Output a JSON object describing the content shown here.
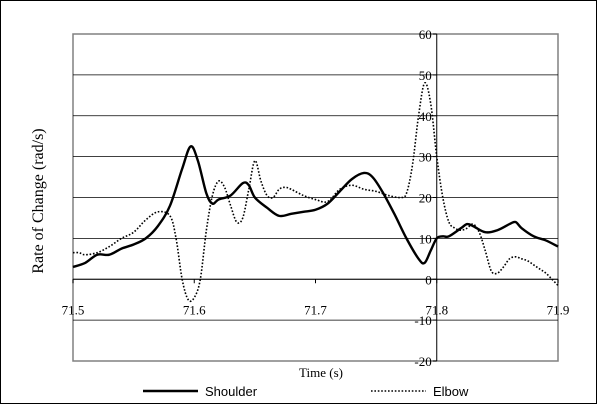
{
  "chart_data": {
    "type": "line",
    "xlabel": "Time (s)",
    "ylabel": "Rate of Change (rad/s)",
    "xlim": [
      71.5,
      71.9
    ],
    "ylim": [
      -20,
      60
    ],
    "x_ticks": [
      {
        "v": 71.5,
        "label": "71.5"
      },
      {
        "v": 71.6,
        "label": "71.6"
      },
      {
        "v": 71.7,
        "label": "71.7"
      },
      {
        "v": 71.8,
        "label": "71.8"
      },
      {
        "v": 71.9,
        "label": "71.9"
      }
    ],
    "y_ticks": [
      {
        "v": -20,
        "label": "-20"
      },
      {
        "v": -10,
        "label": "-10"
      },
      {
        "v": 0,
        "label": "0"
      },
      {
        "v": 10,
        "label": "10"
      },
      {
        "v": 20,
        "label": "20"
      },
      {
        "v": 30,
        "label": "30"
      },
      {
        "v": 40,
        "label": "40"
      },
      {
        "v": 50,
        "label": "50"
      },
      {
        "v": 60,
        "label": "60"
      }
    ],
    "grid": true,
    "legend_position": "bottom",
    "series": [
      {
        "name": "Shoulder",
        "style": "solid",
        "color": "#000000",
        "points": [
          [
            71.5,
            3.0
          ],
          [
            71.51,
            4.0
          ],
          [
            71.52,
            6.0
          ],
          [
            71.53,
            6.0
          ],
          [
            71.54,
            7.5
          ],
          [
            71.55,
            8.5
          ],
          [
            71.56,
            10.0
          ],
          [
            71.57,
            13.0
          ],
          [
            71.58,
            18.0
          ],
          [
            71.59,
            27.0
          ],
          [
            71.597,
            32.5
          ],
          [
            71.603,
            29.0
          ],
          [
            71.61,
            21.0
          ],
          [
            71.615,
            18.5
          ],
          [
            71.62,
            19.5
          ],
          [
            71.63,
            20.5
          ],
          [
            71.64,
            23.5
          ],
          [
            71.645,
            23.0
          ],
          [
            71.65,
            20.0
          ],
          [
            71.66,
            17.5
          ],
          [
            71.67,
            15.5
          ],
          [
            71.68,
            16.0
          ],
          [
            71.69,
            16.5
          ],
          [
            71.7,
            17.0
          ],
          [
            71.71,
            18.5
          ],
          [
            71.72,
            21.5
          ],
          [
            71.73,
            24.5
          ],
          [
            71.74,
            26.0
          ],
          [
            71.747,
            25.0
          ],
          [
            71.755,
            21.5
          ],
          [
            71.765,
            16.0
          ],
          [
            71.775,
            10.0
          ],
          [
            71.785,
            5.0
          ],
          [
            71.79,
            4.0
          ],
          [
            71.795,
            7.0
          ],
          [
            71.8,
            10.0
          ],
          [
            71.805,
            10.5
          ],
          [
            71.81,
            10.5
          ],
          [
            71.82,
            12.5
          ],
          [
            71.825,
            13.5
          ],
          [
            71.83,
            13.0
          ],
          [
            71.84,
            11.5
          ],
          [
            71.85,
            12.0
          ],
          [
            71.86,
            13.5
          ],
          [
            71.865,
            14.0
          ],
          [
            71.87,
            12.5
          ],
          [
            71.88,
            10.5
          ],
          [
            71.89,
            9.5
          ],
          [
            71.9,
            8.0
          ]
        ]
      },
      {
        "name": "Elbow",
        "style": "dotted",
        "color": "#000000",
        "points": [
          [
            71.5,
            6.5
          ],
          [
            71.505,
            6.5
          ],
          [
            71.51,
            6.0
          ],
          [
            71.52,
            6.5
          ],
          [
            71.53,
            8.0
          ],
          [
            71.54,
            10.0
          ],
          [
            71.55,
            11.5
          ],
          [
            71.56,
            14.5
          ],
          [
            71.57,
            16.5
          ],
          [
            71.58,
            15.5
          ],
          [
            71.585,
            10.0
          ],
          [
            71.59,
            0.0
          ],
          [
            71.595,
            -5.0
          ],
          [
            71.6,
            -4.5
          ],
          [
            71.605,
            0.0
          ],
          [
            71.61,
            12.0
          ],
          [
            71.615,
            20.5
          ],
          [
            71.62,
            24.0
          ],
          [
            71.625,
            22.5
          ],
          [
            71.63,
            18.0
          ],
          [
            71.635,
            14.0
          ],
          [
            71.64,
            15.0
          ],
          [
            71.645,
            22.0
          ],
          [
            71.65,
            29.0
          ],
          [
            71.655,
            24.0
          ],
          [
            71.66,
            20.5
          ],
          [
            71.665,
            20.0
          ],
          [
            71.67,
            22.0
          ],
          [
            71.675,
            22.5
          ],
          [
            71.68,
            22.0
          ],
          [
            71.69,
            20.5
          ],
          [
            71.7,
            19.5
          ],
          [
            71.71,
            19.0
          ],
          [
            71.72,
            22.0
          ],
          [
            71.73,
            23.0
          ],
          [
            71.74,
            22.0
          ],
          [
            71.75,
            21.5
          ],
          [
            71.76,
            20.5
          ],
          [
            71.77,
            20.0
          ],
          [
            71.775,
            21.0
          ],
          [
            71.78,
            28.0
          ],
          [
            71.785,
            40.0
          ],
          [
            71.79,
            48.0
          ],
          [
            71.795,
            43.0
          ],
          [
            71.8,
            30.0
          ],
          [
            71.805,
            20.0
          ],
          [
            71.81,
            14.0
          ],
          [
            71.815,
            12.5
          ],
          [
            71.82,
            12.0
          ],
          [
            71.825,
            12.5
          ],
          [
            71.83,
            13.5
          ],
          [
            71.835,
            11.5
          ],
          [
            71.84,
            7.0
          ],
          [
            71.845,
            2.0
          ],
          [
            71.85,
            1.5
          ],
          [
            71.855,
            3.0
          ],
          [
            71.86,
            5.0
          ],
          [
            71.865,
            5.5
          ],
          [
            71.87,
            5.0
          ],
          [
            71.875,
            4.5
          ],
          [
            71.88,
            3.5
          ],
          [
            71.885,
            2.5
          ],
          [
            71.89,
            1.5
          ],
          [
            71.895,
            0.0
          ],
          [
            71.9,
            -1.5
          ]
        ]
      }
    ]
  }
}
